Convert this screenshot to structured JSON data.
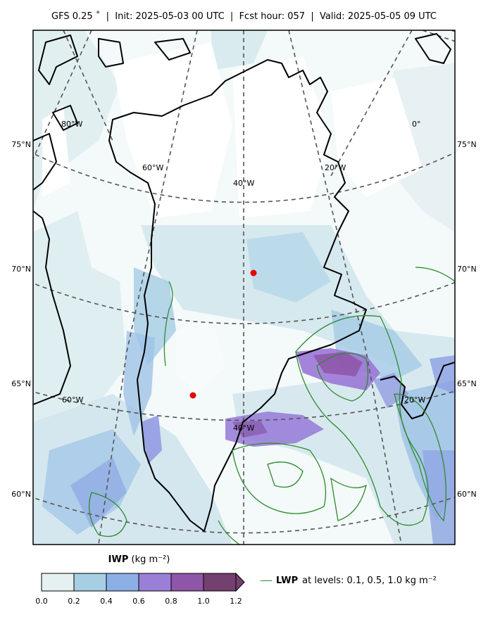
{
  "header": {
    "title": "GFS 0.25$^\\circ$  |  Init: 2025-05-03 00 UTC  |  Fcst hour: 057  |  Valid: 2025-05-05 09 UTC",
    "title_display": "GFS 0.25 ˚  |  Init: 2025-05-03 00 UTC  |  Fcst hour: 057  |  Valid: 2025-05-05 09 UTC"
  },
  "map": {
    "lat_labels_left": [
      "75°N",
      "70°N",
      "65°N",
      "60°N"
    ],
    "lat_labels_right": [
      "75°N",
      "70°N",
      "65°N",
      "60°N"
    ],
    "lon_labels": [
      "80°W",
      "0°",
      "60°W",
      "40°W",
      "20°W",
      "60°W",
      "20°W",
      "40°W"
    ],
    "markers": [
      {
        "name": "marker-north",
        "color": "#e60000"
      },
      {
        "name": "marker-south",
        "color": "#e60000"
      }
    ],
    "coastline_color": "#000000",
    "gridline_color": "#555555",
    "lwp_contour_color": "#2e8b2e"
  },
  "colorbar": {
    "variable": "IWP",
    "units": "(kg m$^{-2}$)",
    "units_display": "(kg m⁻²)",
    "ticks": [
      "0.0",
      "0.2",
      "0.4",
      "0.6",
      "0.8",
      "1.0",
      "1.2"
    ],
    "colors": [
      "#e4f0f2",
      "#a6cfe3",
      "#8cb0e6",
      "#9a7fd8",
      "#8e55a8",
      "#74406f"
    ],
    "extend": "max"
  },
  "legend": {
    "variable": "LWP",
    "text": "at levels: 0.1, 0.5, 1.0  kg m$^{-2}$",
    "text_display": "at levels: 0.1, 0.5, 1.0  kg m⁻²"
  }
}
